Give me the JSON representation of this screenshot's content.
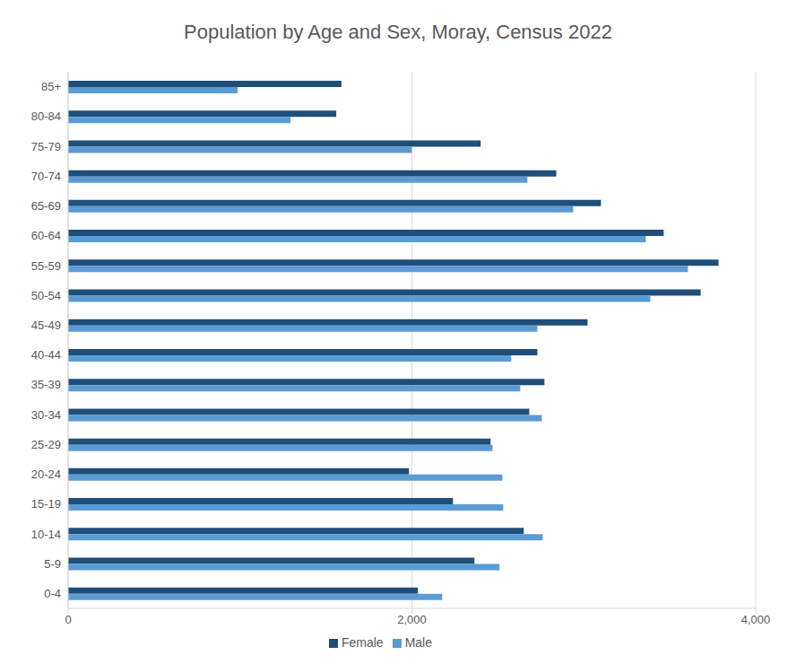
{
  "chart_data": {
    "type": "bar",
    "title": "Population by Age and Sex, Moray, Census 2022",
    "orientation": "horizontal",
    "categories": [
      "85+",
      "80-84",
      "75-79",
      "70-74",
      "65-69",
      "60-64",
      "55-59",
      "50-54",
      "45-49",
      "40-44",
      "35-39",
      "30-34",
      "25-29",
      "20-24",
      "15-19",
      "10-14",
      "5-9",
      "0-4"
    ],
    "series": [
      {
        "name": "Female",
        "color": "#1f4e79",
        "values": [
          1590,
          1560,
          2400,
          2840,
          3100,
          3465,
          3784,
          3680,
          3022,
          2730,
          2771,
          2683,
          2458,
          1983,
          2239,
          2651,
          2364,
          2035
        ]
      },
      {
        "name": "Male",
        "color": "#5b9bd5",
        "values": [
          986,
          1294,
          1999,
          2672,
          2938,
          3361,
          3606,
          3387,
          2730,
          2578,
          2630,
          2756,
          2469,
          2526,
          2531,
          2761,
          2510,
          2176
        ]
      }
    ],
    "xlim": [
      0,
      4000
    ],
    "xticks": [
      0,
      {
        "value": 2000,
        "label": "2,000"
      },
      {
        "value": 4000,
        "label": "4,000"
      }
    ],
    "grid": true,
    "legend": "bottom"
  }
}
